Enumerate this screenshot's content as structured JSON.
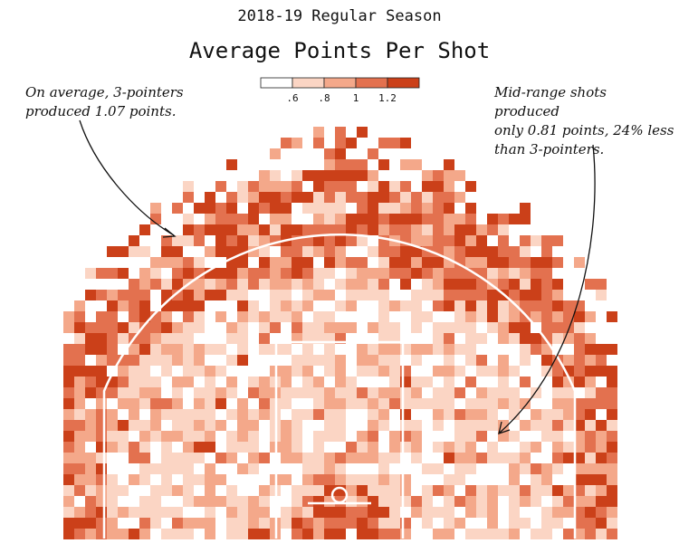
{
  "chart_data": {
    "type": "heatmap",
    "subtitle": "2018-19 Regular Season",
    "title": "Average Points Per Shot",
    "legend": {
      "placement": "top-center",
      "tick_labels": [
        ".6",
        ".8",
        "1",
        "1.2"
      ],
      "bins": [
        {
          "range": [
            0,
            0.6
          ],
          "color": "#ffffff"
        },
        {
          "range": [
            0.6,
            0.8
          ],
          "color": "#fbd5c4"
        },
        {
          "range": [
            0.8,
            1.0
          ],
          "color": "#f4a88a"
        },
        {
          "range": [
            1.0,
            1.2
          ],
          "color": "#e3714f"
        },
        {
          "range": [
            1.2,
            1.6
          ],
          "color": "#cb4019"
        }
      ]
    },
    "series": [
      {
        "region": "3-pointers",
        "avg_points_per_shot": 1.07
      },
      {
        "region": "mid-range",
        "avg_points_per_shot": 0.81
      }
    ],
    "annotations": [
      "On average, 3-pointers\nproduced 1.07 points.",
      "Mid-range shots produced\nonly 0.81 points, 24% less\nthan 3-pointers."
    ],
    "grid": false
  }
}
